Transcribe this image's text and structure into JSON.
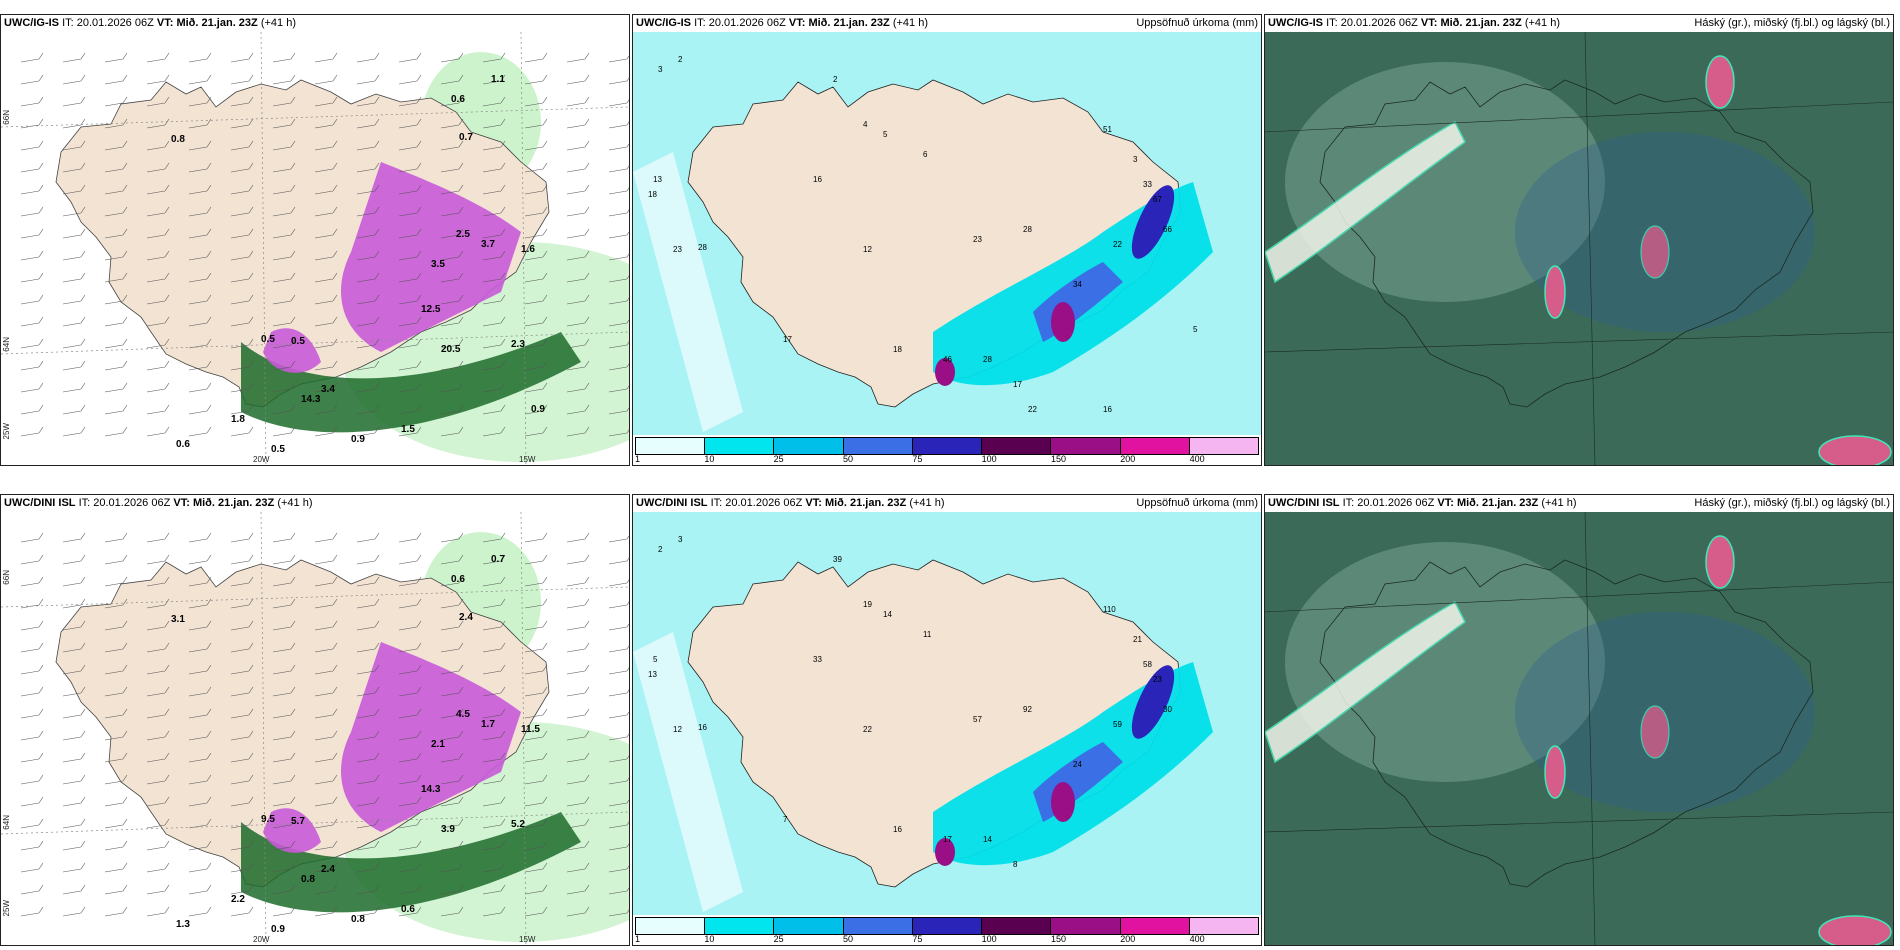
{
  "panels": [
    {
      "model": "UWC/IG-IS",
      "it_label": "IT:",
      "it_value": "20.01.2026 06Z",
      "vt_label": "VT:",
      "vt_value": "Mið. 21.jan. 23Z",
      "lead": "(+41 h)",
      "right_title": "",
      "type": "wind",
      "axis_labels": [
        "66N",
        "64N",
        "25W",
        "20W",
        "15W"
      ],
      "values": [
        "0.6",
        "1.1",
        "0.7",
        "0.8",
        "2.5",
        "3.7",
        "3.5",
        "1.6",
        "0.5",
        "0.5",
        "2.3",
        "3.4",
        "1.5",
        "0.9",
        "0.6",
        "14.3",
        "12.5",
        "20.5",
        "1.8",
        "0.5",
        "0.9"
      ]
    },
    {
      "model": "UWC/IG-IS",
      "it_label": "IT:",
      "it_value": "20.01.2026 06Z",
      "vt_label": "VT:",
      "vt_value": "Mið. 21.jan. 23Z",
      "lead": "(+41 h)",
      "right_title": "Uppsöfnuð úrkoma (mm)",
      "type": "precip",
      "values": [
        "3",
        "2",
        "13",
        "18",
        "23",
        "28",
        "2",
        "4",
        "5",
        "6",
        "17",
        "16",
        "12",
        "23",
        "28",
        "51",
        "22",
        "3",
        "33",
        "67",
        "66",
        "34",
        "46",
        "28",
        "18",
        "17",
        "22",
        "16",
        "5"
      ]
    },
    {
      "model": "UWC/IG-IS",
      "it_label": "IT:",
      "it_value": "20.01.2026 06Z",
      "vt_label": "VT:",
      "vt_value": "Mið. 21.jan. 23Z",
      "lead": "(+41 h)",
      "right_title": "Háský (gr.), miðský (fj.bl.) og lágský (bl.)",
      "type": "cloud"
    },
    {
      "model": "UWC/DINI ISL",
      "it_label": "IT:",
      "it_value": "20.01.2026 06Z",
      "vt_label": "VT:",
      "vt_value": "Mið. 21.jan. 23Z",
      "lead": "(+41 h)",
      "right_title": "",
      "type": "wind",
      "axis_labels": [
        "66N",
        "64N",
        "25W",
        "20W",
        "15W"
      ],
      "values": [
        "0.6",
        "0.7",
        "2.4",
        "3.1",
        "4.5",
        "1.7",
        "2.1",
        "11.5",
        "9.5",
        "5.7",
        "5.2",
        "2.4",
        "0.6",
        "0.8",
        "1.3",
        "0.8",
        "14.3",
        "3.9",
        "2.2",
        "0.9"
      ]
    },
    {
      "model": "UWC/DINI ISL",
      "it_label": "IT:",
      "it_value": "20.01.2026 06Z",
      "vt_label": "VT:",
      "vt_value": "Mið. 21.jan. 23Z",
      "lead": "(+41 h)",
      "right_title": "Uppsöfnuð úrkoma (mm)",
      "type": "precip",
      "values": [
        "2",
        "3",
        "5",
        "13",
        "12",
        "16",
        "39",
        "19",
        "14",
        "11",
        "7",
        "33",
        "22",
        "57",
        "92",
        "110",
        "59",
        "21",
        "58",
        "23",
        "30",
        "24",
        "17",
        "14",
        "16",
        "8"
      ]
    },
    {
      "model": "UWC/DINI ISL",
      "it_label": "IT:",
      "it_value": "20.01.2026 06Z",
      "vt_label": "VT:",
      "vt_value": "Mið. 21.jan. 23Z",
      "lead": "(+41 h)",
      "right_title": "Háský (gr.), miðský (fj.bl.) og lágský (bl.)",
      "type": "cloud"
    }
  ],
  "colorbar": {
    "labels": [
      "1",
      "10",
      "25",
      "50",
      "75",
      "100",
      "150",
      "200",
      "400"
    ],
    "colors": [
      "#e6fffe",
      "#00e5ee",
      "#00bfe8",
      "#3a6fe6",
      "#2a25b8",
      "#5a0050",
      "#9a0e86",
      "#e0129f",
      "#f5b5f0"
    ]
  },
  "palette": {
    "land": "#f2e3d3",
    "sea_precip": "#a9f3f5",
    "precip_cyan": "#00dfe9",
    "wind_green_light": "#bff0bf",
    "wind_green_dark": "#1d6b2a",
    "wind_purple": "#c85ad8",
    "cloud_base": "#3b6b58",
    "cloud_light": "#9bc2b2",
    "cloud_pink": "#d65c8a",
    "cloud_edge": "#43e6b6"
  }
}
